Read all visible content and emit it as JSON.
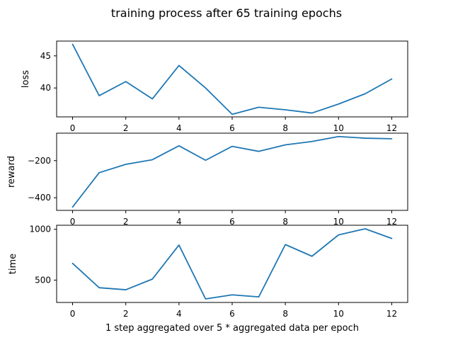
{
  "figure": {
    "title": "training process after 65 training epochs",
    "xlabel": "1 step aggregated over 5 * aggregated data per epoch"
  },
  "chart_data": [
    {
      "type": "line",
      "ylabel": "loss",
      "x": [
        0,
        1,
        2,
        3,
        4,
        5,
        6,
        7,
        8,
        9,
        10,
        11,
        12
      ],
      "series": [
        {
          "color": "#1f77b4",
          "values": [
            46.8,
            38.8,
            41.0,
            38.3,
            43.5,
            40.0,
            35.9,
            37.0,
            36.6,
            36.1,
            37.5,
            39.1,
            41.4
          ]
        }
      ],
      "xlim": [
        -0.6,
        12.6
      ],
      "ylim": [
        35.5,
        47.3
      ],
      "xticks": [
        0,
        2,
        4,
        6,
        8,
        10,
        12
      ],
      "yticks": [
        40,
        45
      ],
      "grid": false,
      "legend": false
    },
    {
      "type": "line",
      "ylabel": "reward",
      "x": [
        0,
        1,
        2,
        3,
        4,
        5,
        6,
        7,
        8,
        9,
        10,
        11,
        12
      ],
      "series": [
        {
          "color": "#1f77b4",
          "values": [
            -450,
            -265,
            -220,
            -195,
            -120,
            -198,
            -123,
            -150,
            -115,
            -97,
            -70,
            -79,
            -82
          ]
        }
      ],
      "xlim": [
        -0.6,
        12.6
      ],
      "ylim": [
        -468,
        -52
      ],
      "xticks": [
        0,
        2,
        4,
        6,
        8,
        10,
        12
      ],
      "yticks": [
        -400,
        -200
      ],
      "ytick_labels": [
        "−400",
        "−200"
      ],
      "grid": false,
      "legend": false
    },
    {
      "type": "line",
      "ylabel": "time",
      "x": [
        0,
        1,
        2,
        3,
        4,
        5,
        6,
        7,
        8,
        9,
        10,
        11,
        12
      ],
      "series": [
        {
          "color": "#1f77b4",
          "values": [
            665,
            425,
            405,
            510,
            845,
            315,
            355,
            335,
            850,
            735,
            945,
            1005,
            910
          ]
        }
      ],
      "xlim": [
        -0.6,
        12.6
      ],
      "ylim": [
        280,
        1040
      ],
      "xticks": [
        0,
        2,
        4,
        6,
        8,
        10,
        12
      ],
      "yticks": [
        500,
        1000
      ],
      "grid": false,
      "legend": false
    }
  ]
}
